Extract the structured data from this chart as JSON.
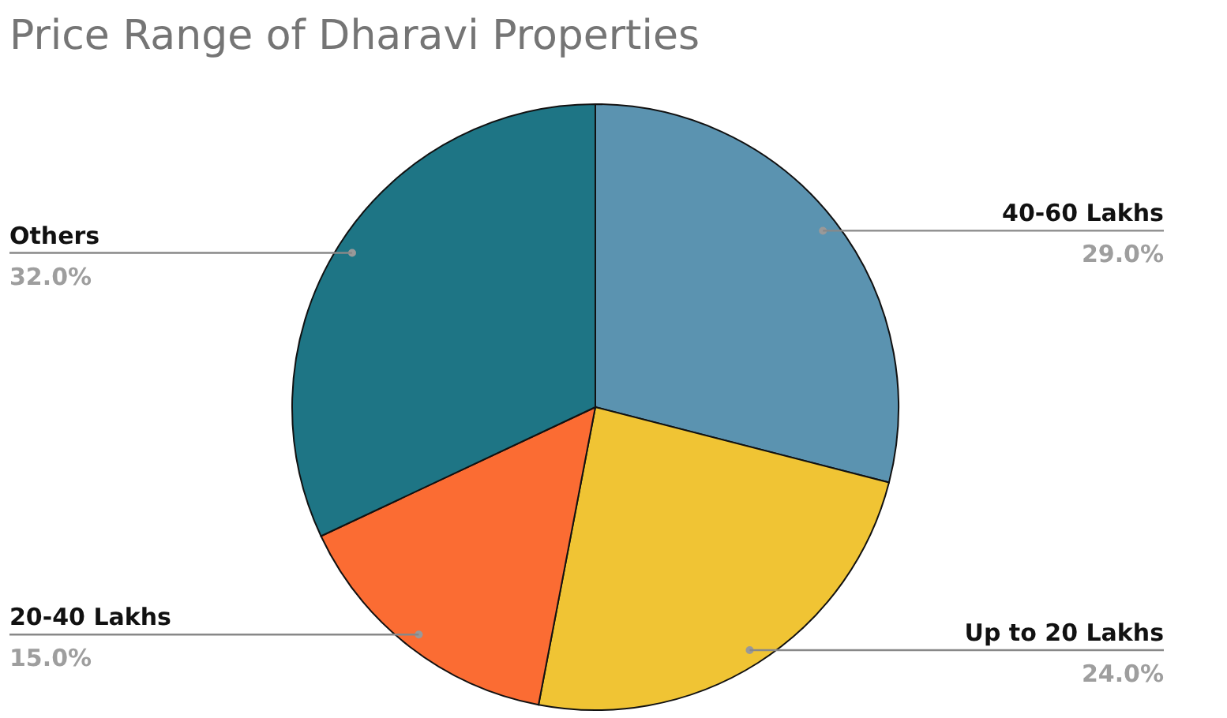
{
  "chart_data": {
    "type": "pie",
    "title": "Price Range of Dharavi Properties",
    "categories": [
      "40-60 Lakhs",
      "Up to 20 Lakhs",
      "20-40 Lakhs",
      "Others"
    ],
    "values": [
      29,
      24,
      15,
      32
    ],
    "value_labels": [
      "29.0%",
      "24.0%",
      "15.0%",
      "32.0%"
    ],
    "colors": [
      "#5b93b0",
      "#f0c434",
      "#fb6c33",
      "#1e7585"
    ],
    "legend": false
  }
}
